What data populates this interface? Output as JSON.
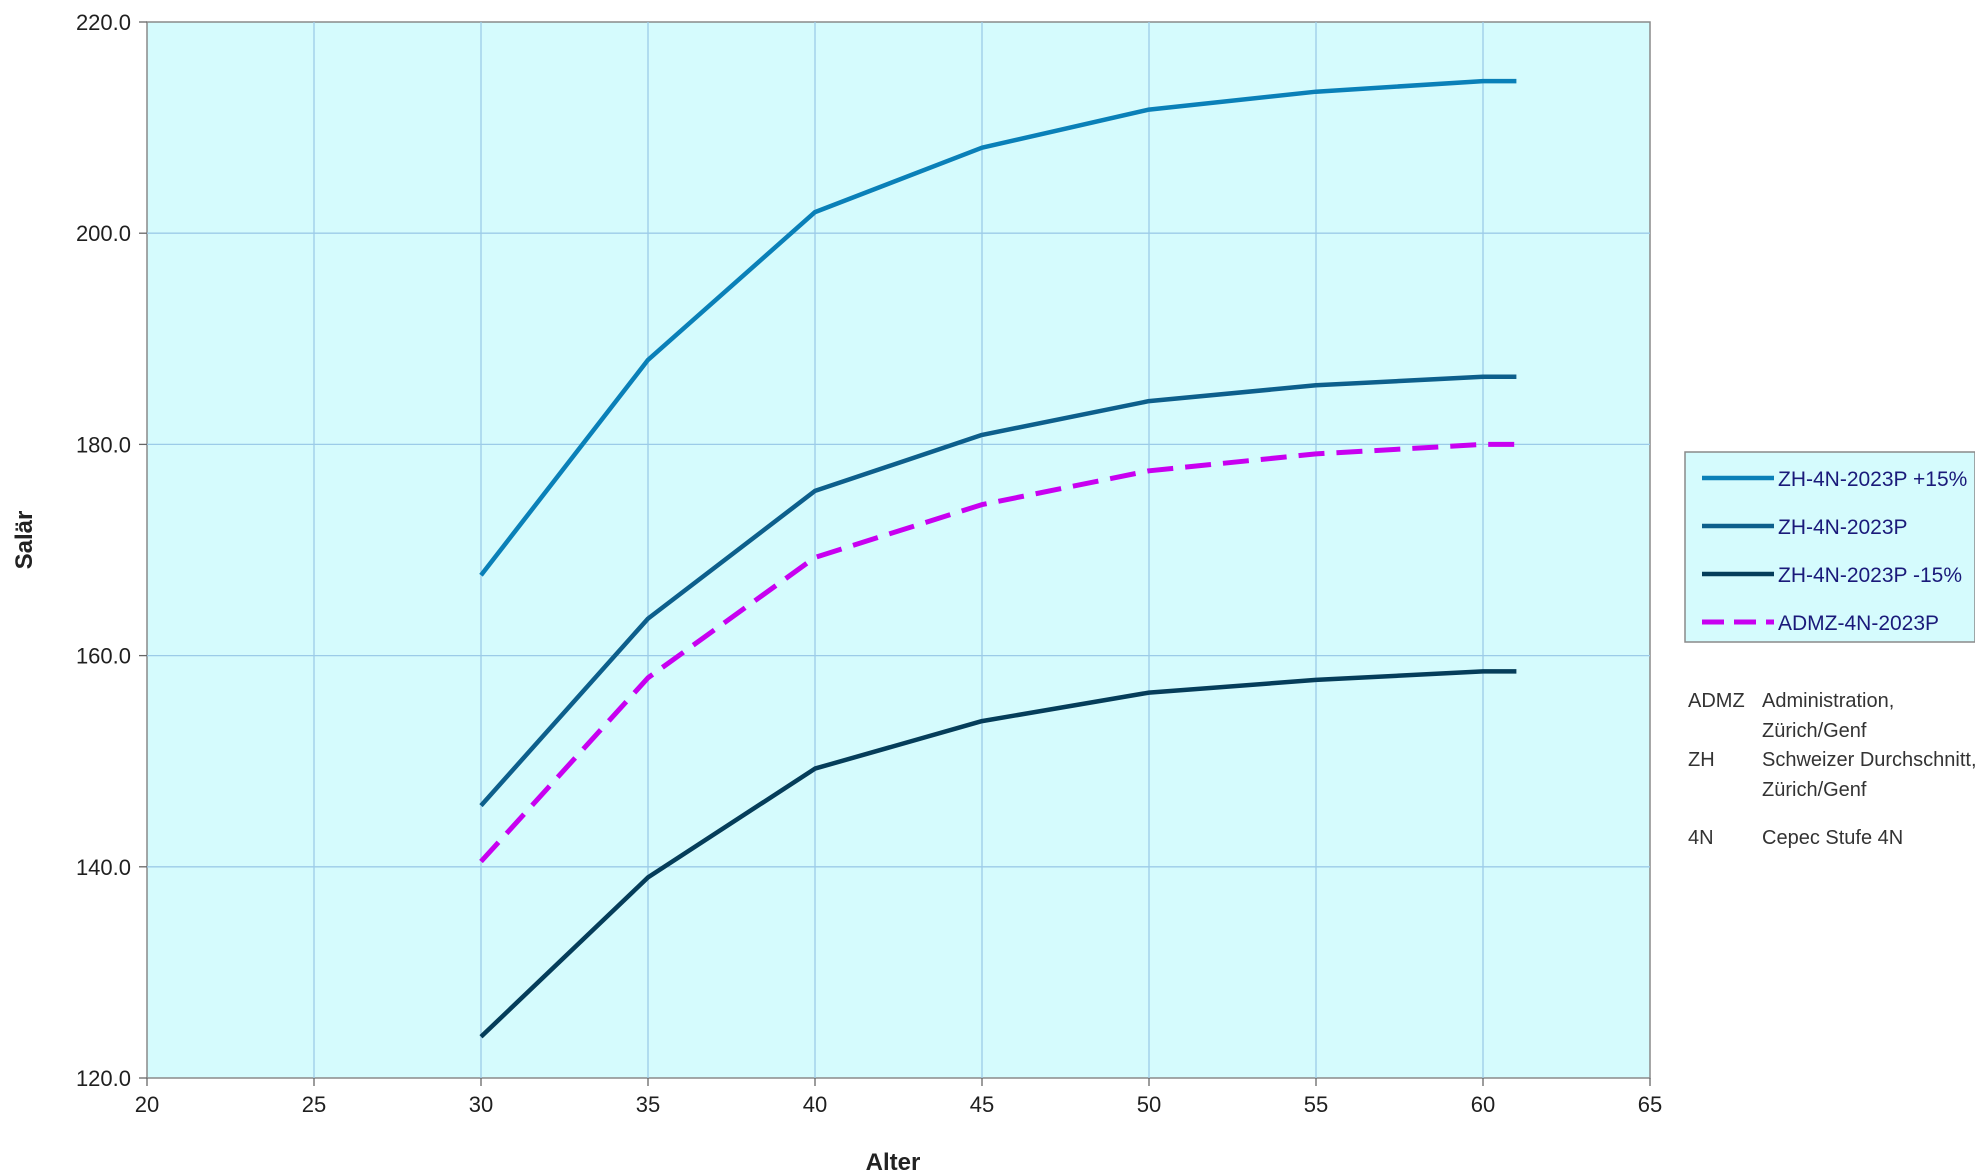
{
  "chart_data": {
    "type": "line",
    "xlabel": "Alter",
    "ylabel": "Salär",
    "xlim": [
      20,
      65
    ],
    "ylim": [
      120,
      220
    ],
    "x_ticks": [
      20,
      25,
      30,
      35,
      40,
      45,
      50,
      55,
      60,
      65
    ],
    "y_ticks": [
      "120.0",
      "140.0",
      "160.0",
      "180.0",
      "200.0",
      "220.0"
    ],
    "y_tick_values": [
      120,
      140,
      160,
      180,
      200,
      220
    ],
    "x": [
      30,
      35,
      40,
      45,
      50,
      55,
      60,
      61
    ],
    "grid": true,
    "legend_position": "right",
    "plot_background": "#d5fbfd",
    "series": [
      {
        "name": "ZH-4N-2023P +15%",
        "color": "#0a80b8",
        "dashed": false,
        "values": [
          167.6,
          188.0,
          202.0,
          208.1,
          211.7,
          213.4,
          214.4,
          214.4
        ]
      },
      {
        "name": "ZH-4N-2023P",
        "color": "#0d5f8c",
        "dashed": false,
        "values": [
          145.8,
          163.5,
          175.6,
          180.9,
          184.1,
          185.6,
          186.4,
          186.4
        ]
      },
      {
        "name": "ZH-4N-2023P -15%",
        "color": "#053d5a",
        "dashed": false,
        "values": [
          123.9,
          139.0,
          149.3,
          153.8,
          156.5,
          157.7,
          158.5,
          158.5
        ]
      },
      {
        "name": "ADMZ-4N-2023P",
        "color": "#c800f0",
        "dashed": true,
        "values": [
          140.5,
          157.9,
          169.3,
          174.3,
          177.5,
          179.1,
          180.0,
          180.0
        ]
      }
    ]
  },
  "notes": [
    {
      "abbr": "ADMZ",
      "lines": [
        "Administration,",
        "Zürich/Genf"
      ]
    },
    {
      "abbr": "ZH",
      "lines": [
        "Schweizer Durchschnitt,",
        "Zürich/Genf"
      ]
    },
    {
      "abbr": "4N",
      "lines": [
        "Cepec Stufe 4N"
      ]
    }
  ]
}
